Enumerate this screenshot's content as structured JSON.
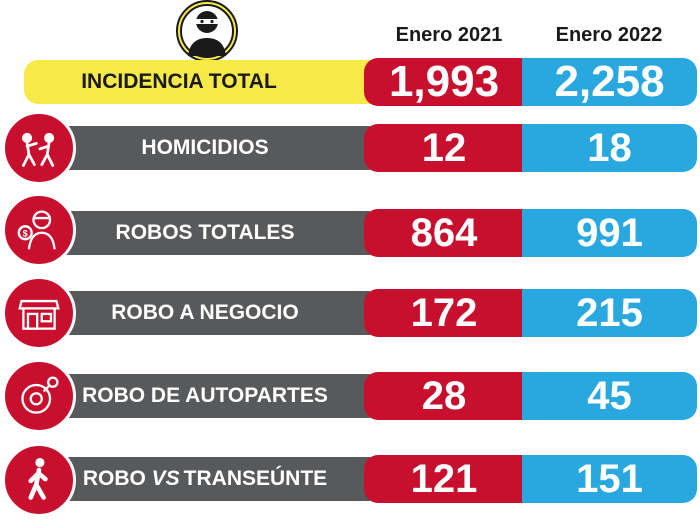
{
  "chart_data": {
    "type": "table",
    "columns": [
      "Enero 2021",
      "Enero 2022"
    ],
    "total": {
      "label": "INCIDENCIA TOTAL",
      "values": [
        "1,993",
        "2,258"
      ]
    },
    "rows": [
      {
        "label": "HOMICIDIOS",
        "icon": "fight-icon",
        "values": [
          "12",
          "18"
        ]
      },
      {
        "label": "ROBOS TOTALES",
        "icon": "thief-money-icon",
        "values": [
          "864",
          "991"
        ]
      },
      {
        "label": "ROBO A NEGOCIO",
        "icon": "store-icon",
        "values": [
          "172",
          "215"
        ]
      },
      {
        "label": "ROBO DE AUTOPARTES",
        "icon": "tire-icon",
        "values": [
          "28",
          "45"
        ]
      },
      {
        "label_prefix": "ROBO ",
        "label_italic": "VS",
        "label_suffix": "TRANSEÚNTE",
        "icon": "pedestrian-icon",
        "values": [
          "121",
          "151"
        ]
      }
    ]
  },
  "colors": {
    "red": "#c8102e",
    "blue": "#29a8e0",
    "gray": "#58595b",
    "yellow": "#f7ea48"
  },
  "header_icon": "masked-thief-icon"
}
